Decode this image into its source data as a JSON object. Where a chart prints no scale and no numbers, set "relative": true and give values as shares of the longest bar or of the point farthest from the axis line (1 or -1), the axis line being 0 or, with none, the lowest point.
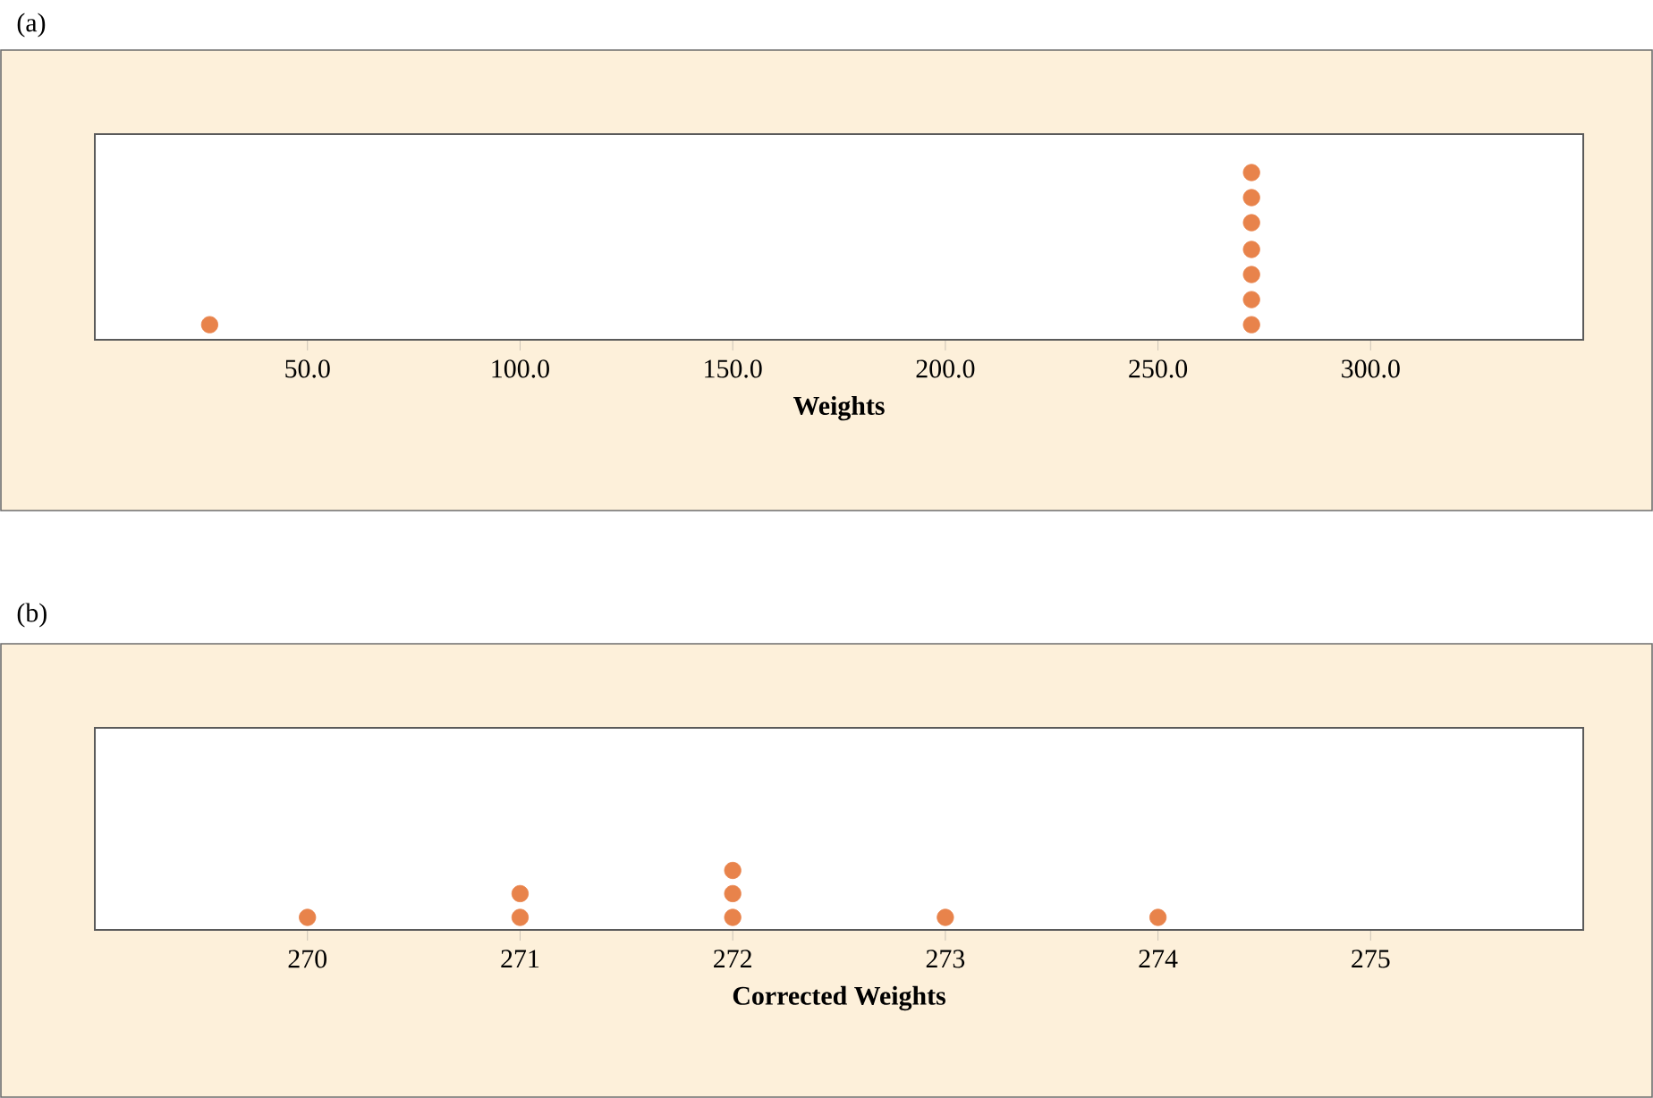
{
  "chart_data": [
    {
      "type": "scatter",
      "title": "(a)",
      "xlabel": "Weights",
      "relative": true,
      "marker": "circle",
      "tick_labels": "x",
      "x": [
        27,
        272,
        272,
        272,
        272,
        272,
        272,
        272
      ],
      "series": [
        {
          "color": "#e8834b",
          "values": [
            0.09,
            0.09,
            0.24,
            0.39,
            0.54,
            0.7,
            0.85,
            1
          ]
        }
      ],
      "xlim": [
        0,
        350
      ],
      "xticks": [
        {
          "value": 50,
          "label": "50.0"
        },
        {
          "value": 100,
          "label": "100.0"
        },
        {
          "value": 150,
          "label": "150.0"
        },
        {
          "value": 200,
          "label": "200.0"
        },
        {
          "value": 250,
          "label": "250.0"
        },
        {
          "value": 300,
          "label": "300.0"
        }
      ]
    },
    {
      "type": "scatter",
      "title": "(b)",
      "xlabel": "Corrected Weights",
      "relative": true,
      "marker": "circle",
      "tick_labels": "x",
      "x": [
        270,
        271,
        271,
        272,
        272,
        272,
        273,
        274
      ],
      "series": [
        {
          "color": "#e8834b",
          "values": [
            0.21,
            0.21,
            0.61,
            0.21,
            0.61,
            1,
            0.21,
            0.21
          ]
        }
      ],
      "xlim": [
        269,
        276
      ],
      "xticks": [
        270,
        271,
        272,
        273,
        274,
        275
      ]
    }
  ]
}
